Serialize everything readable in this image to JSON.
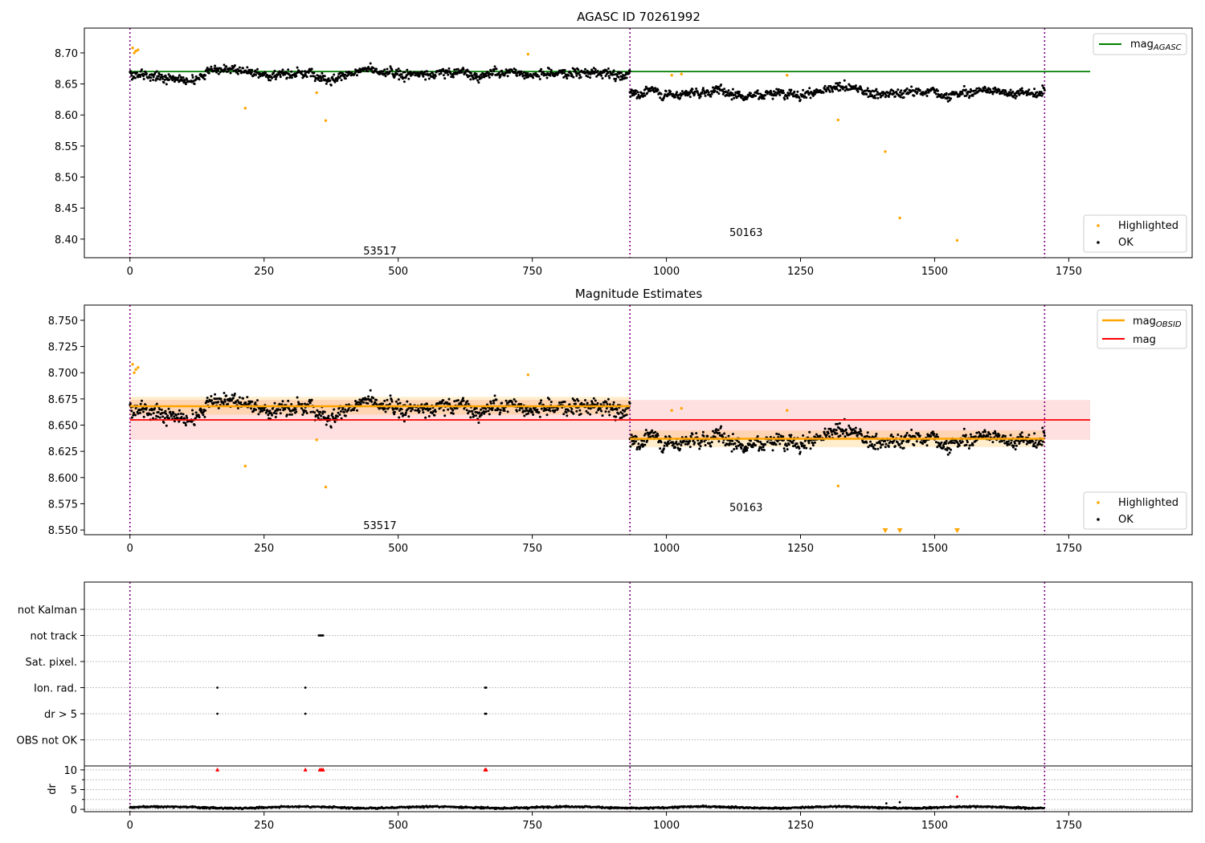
{
  "chart_data": [
    {
      "type": "scatter",
      "title": "AGASC ID 70261992",
      "xlabel": "",
      "ylabel": "",
      "xlim": [
        -85,
        1980
      ],
      "ylim": [
        8.37,
        8.74
      ],
      "xticks": [
        "0",
        "250",
        "500",
        "750",
        "1000",
        "1250",
        "1500",
        "1750"
      ],
      "yticks": [
        "8.40",
        "8.45",
        "8.50",
        "8.55",
        "8.60",
        "8.65",
        "8.70"
      ],
      "grid": false,
      "legend_upper": {
        "position": "top-right",
        "entries": [
          {
            "label": "mag",
            "subscript": "AGASC",
            "color": "#008000"
          }
        ]
      },
      "legend_lower": {
        "position": "bottom-right",
        "entries": [
          {
            "label": "Highlighted",
            "color": "#ffa500"
          },
          {
            "label": "OK",
            "color": "#000000"
          }
        ]
      },
      "obsids": [
        {
          "label": "53517",
          "x_start": 0,
          "x_end": 932
        },
        {
          "label": "50163",
          "x_start": 932,
          "x_end": 1705
        }
      ],
      "obsid_boundaries": [
        0,
        932,
        1705
      ],
      "mag_agasc": 8.67,
      "mag_agasc_x": [
        0,
        1790
      ],
      "ok_series": [
        {
          "x_start": 0,
          "x_end": 932,
          "mean": 8.668,
          "scatter": 0.011,
          "n": 930
        },
        {
          "x_start": 932,
          "x_end": 1705,
          "mean": 8.637,
          "scatter": 0.01,
          "n": 770
        }
      ],
      "highlighted_points": [
        [
          5,
          8.708
        ],
        [
          8,
          8.7
        ],
        [
          11,
          8.703
        ],
        [
          15,
          8.705
        ],
        [
          215,
          8.611
        ],
        [
          348,
          8.636
        ],
        [
          365,
          8.591
        ],
        [
          742,
          8.698
        ],
        [
          1010,
          8.664
        ],
        [
          1028,
          8.666
        ],
        [
          1225,
          8.664
        ],
        [
          1320,
          8.592
        ],
        [
          1408,
          8.541
        ],
        [
          1435,
          8.434
        ],
        [
          1542,
          8.398
        ]
      ]
    },
    {
      "type": "scatter",
      "title": "Magnitude Estimates",
      "xlabel": "",
      "ylabel": "",
      "xlim": [
        -85,
        1980
      ],
      "ylim": [
        8.5455,
        8.7645
      ],
      "xticks": [
        "0",
        "250",
        "500",
        "750",
        "1000",
        "1250",
        "1500",
        "1750"
      ],
      "yticks": [
        "8.550",
        "8.575",
        "8.600",
        "8.625",
        "8.650",
        "8.675",
        "8.700",
        "8.725",
        "8.750"
      ],
      "grid": false,
      "legend_upper": {
        "position": "top-right",
        "entries": [
          {
            "label": "mag",
            "subscript": "OBSID",
            "color": "#ffa500"
          },
          {
            "label": "mag",
            "subscript": "",
            "color": "#ff0000"
          }
        ]
      },
      "legend_lower": {
        "position": "bottom-right",
        "entries": [
          {
            "label": "Highlighted",
            "color": "#ffa500"
          },
          {
            "label": "OK",
            "color": "#000000"
          }
        ]
      },
      "obsids": [
        {
          "label": "53517",
          "x_start": 0,
          "x_end": 932
        },
        {
          "label": "50163",
          "x_start": 932,
          "x_end": 1705
        }
      ],
      "obsid_boundaries": [
        0,
        932,
        1705
      ],
      "mag": 8.655,
      "mag_band": [
        8.636,
        8.674
      ],
      "mag_x": [
        0,
        1790
      ],
      "mag_obsid": [
        {
          "x_start": 0,
          "x_end": 932,
          "value": 8.668,
          "band": [
            8.66,
            8.677
          ]
        },
        {
          "x_start": 932,
          "x_end": 1705,
          "value": 8.637,
          "band": [
            8.629,
            8.645
          ]
        }
      ],
      "highlighted_points": [
        [
          5,
          8.708
        ],
        [
          8,
          8.7
        ],
        [
          11,
          8.703
        ],
        [
          15,
          8.705
        ],
        [
          215,
          8.611
        ],
        [
          348,
          8.636
        ],
        [
          365,
          8.591
        ],
        [
          742,
          8.698
        ],
        [
          1010,
          8.664
        ],
        [
          1028,
          8.666
        ],
        [
          1225,
          8.664
        ],
        [
          1320,
          8.592
        ]
      ],
      "below_range_markers": [
        1408,
        1435,
        1542
      ]
    },
    {
      "type": "scatter",
      "title": "",
      "xlim": [
        -85,
        1980
      ],
      "xticks": [
        "0",
        "250",
        "500",
        "750",
        "1000",
        "1250",
        "1500",
        "1750"
      ],
      "obsid_boundaries": [
        0,
        932,
        1705
      ],
      "flag_categories": [
        "not Kalman",
        "not track",
        "Sat. pixel.",
        "Ion. rad.",
        "dr > 5",
        "OBS not OK"
      ],
      "flag_points": [
        {
          "category": "not track",
          "x": [
            352,
            354,
            356,
            358,
            360
          ]
        },
        {
          "category": "Ion. rad.",
          "x": [
            163,
            327,
            662,
            664
          ]
        },
        {
          "category": "dr > 5",
          "x": [
            163,
            327,
            662,
            664
          ]
        }
      ],
      "dr_panel": {
        "ylabel": "dr",
        "yticks": [
          "0",
          "5",
          "10"
        ],
        "ylim": [
          -0.6,
          11.0
        ],
        "baseline_mean": 0.5,
        "red_markers_at_10": [
          163,
          327,
          354,
          357,
          360,
          662,
          664
        ],
        "outliers": [
          [
            1410,
            1.5
          ],
          [
            1435,
            1.8
          ],
          [
            1542,
            3.2
          ]
        ]
      }
    }
  ]
}
